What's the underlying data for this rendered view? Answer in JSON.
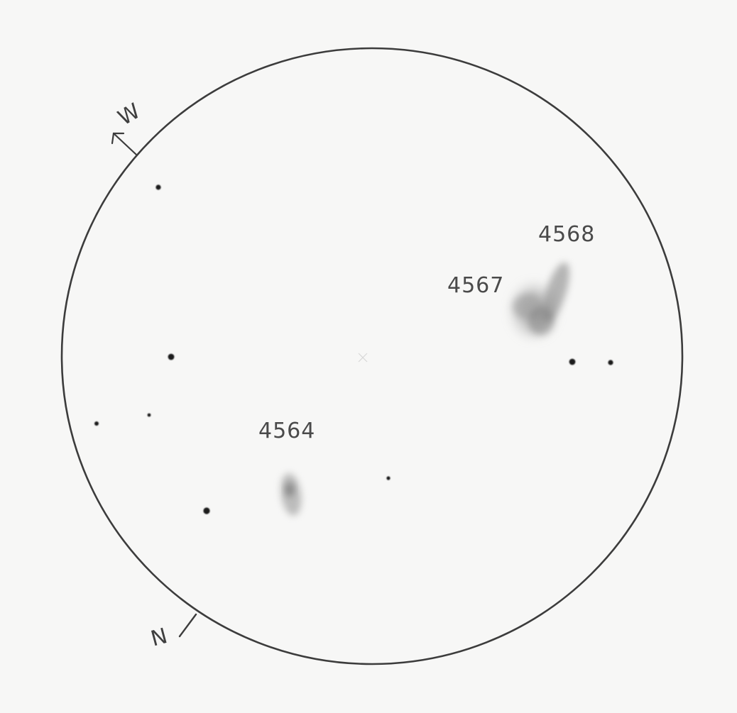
{
  "sketch": {
    "objects": [
      {
        "id": "galaxy-4568",
        "label": "4568"
      },
      {
        "id": "galaxy-4567",
        "label": "4567"
      },
      {
        "id": "galaxy-4564",
        "label": "4564"
      }
    ],
    "directions": {
      "west": "W",
      "north": "N"
    }
  }
}
